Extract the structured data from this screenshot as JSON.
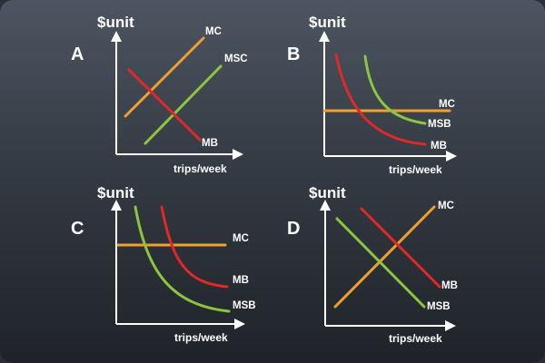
{
  "colors": {
    "mc": "#f0a030",
    "msc": "#8cc63f",
    "mb": "#e02828",
    "msb": "#8cc63f",
    "axis": "#ffffff"
  },
  "panels": [
    {
      "letter": "A",
      "ylabel": "$unit",
      "xlabel": "trips/week",
      "curves": [
        {
          "label": "MC",
          "color_key": "mc",
          "kind": "upward-line"
        },
        {
          "label": "MSC",
          "color_key": "msc",
          "kind": "upward-line"
        },
        {
          "label": "MB",
          "color_key": "mb",
          "kind": "downward-line"
        }
      ]
    },
    {
      "letter": "B",
      "ylabel": "$unit",
      "xlabel": "trips/week",
      "curves": [
        {
          "label": "MC",
          "color_key": "mc",
          "kind": "horizontal-line"
        },
        {
          "label": "MSB",
          "color_key": "msb",
          "kind": "convex-decreasing-curve"
        },
        {
          "label": "MB",
          "color_key": "mb",
          "kind": "convex-decreasing-curve"
        }
      ]
    },
    {
      "letter": "C",
      "ylabel": "$unit",
      "xlabel": "trips/week",
      "curves": [
        {
          "label": "MC",
          "color_key": "mc",
          "kind": "horizontal-line"
        },
        {
          "label": "MB",
          "color_key": "mb",
          "kind": "convex-decreasing-curve"
        },
        {
          "label": "MSB",
          "color_key": "msb",
          "kind": "convex-decreasing-curve"
        }
      ]
    },
    {
      "letter": "D",
      "ylabel": "$unit",
      "xlabel": "trips/week",
      "curves": [
        {
          "label": "MC",
          "color_key": "mc",
          "kind": "upward-line"
        },
        {
          "label": "MB",
          "color_key": "mb",
          "kind": "downward-line"
        },
        {
          "label": "MSB",
          "color_key": "msb",
          "kind": "downward-line"
        }
      ]
    }
  ]
}
